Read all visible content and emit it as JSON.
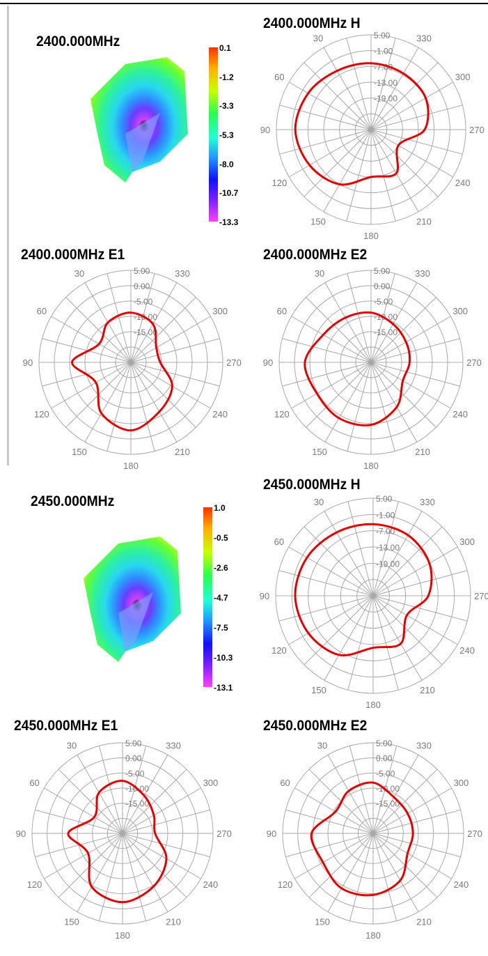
{
  "panels": [
    {
      "id": "p0",
      "title": "2400.000MHz",
      "kind": "3d",
      "colorbar": {
        "labels": [
          "0.1",
          "-1.2",
          "-3.3",
          "-5.3",
          "-8.0",
          "-10.7",
          "-13.3"
        ]
      }
    },
    {
      "id": "p1",
      "title": "2400.000MHz  H",
      "kind": "polar",
      "ring_labels": [
        "5.00",
        "-1.00",
        "-7.00",
        "-13.00",
        "-19.00"
      ],
      "angle_labels": [
        "330",
        "300",
        "270",
        "240",
        "210",
        "180",
        "150",
        "120",
        "90",
        "60",
        "30"
      ],
      "chart_data": {
        "type": "line",
        "coordinate": "polar",
        "unit": "dB",
        "angle_unit": "deg",
        "rlim": [
          -25,
          5
        ],
        "angles": [
          0,
          30,
          60,
          90,
          120,
          150,
          180,
          210,
          240,
          270,
          300,
          330
        ],
        "values": [
          -4,
          -3.5,
          -2,
          -1,
          -2.5,
          -5,
          -10,
          -9,
          -15,
          -8,
          -5,
          -4.5
        ]
      }
    },
    {
      "id": "p2",
      "title": "2400.000MHz  E1",
      "kind": "polar",
      "ring_labels": [
        "5.00",
        "0.00",
        "-5.00",
        "-10.00",
        "-15.00"
      ],
      "angle_labels": [
        "330",
        "300",
        "270",
        "240",
        "210",
        "180",
        "150",
        "120",
        "90",
        "60",
        "30"
      ],
      "chart_data": {
        "type": "line",
        "coordinate": "polar",
        "unit": "dB",
        "angle_unit": "deg",
        "rlim": [
          -20,
          5
        ],
        "angles": [
          0,
          30,
          60,
          90,
          120,
          150,
          180,
          210,
          240,
          270,
          300,
          330
        ],
        "values": [
          -6.5,
          -7.5,
          -10,
          -4,
          -9,
          -4,
          -1.5,
          -4.5,
          -7,
          -12,
          -12,
          -8
        ]
      }
    },
    {
      "id": "p3",
      "title": "2400.000MHz  E2",
      "kind": "polar",
      "ring_labels": [
        "5.00",
        "0.00",
        "-5.00",
        "-10.00",
        "-15.00"
      ],
      "angle_labels": [
        "330",
        "300",
        "270",
        "240",
        "210",
        "180",
        "150",
        "120",
        "90",
        "60",
        "30"
      ],
      "chart_data": {
        "type": "line",
        "coordinate": "polar",
        "unit": "dB",
        "angle_unit": "deg",
        "rlim": [
          -20,
          5
        ],
        "angles": [
          0,
          30,
          60,
          90,
          120,
          150,
          180,
          210,
          240,
          270,
          300,
          330
        ],
        "values": [
          -6.5,
          -6,
          -5,
          -2,
          -3,
          -2.5,
          -3,
          -6,
          -10,
          -9.5,
          -9,
          -8
        ]
      }
    },
    {
      "id": "p4",
      "title": "2450.000MHz",
      "kind": "3d",
      "colorbar": {
        "labels": [
          "1.0",
          "-0.5",
          "-2.6",
          "-4.7",
          "-7.5",
          "-10.3",
          "-13.1"
        ]
      }
    },
    {
      "id": "p5",
      "title": "2450.000MHz  H",
      "kind": "polar",
      "ring_labels": [
        "5.00",
        "-1.00",
        "-7.00",
        "-13.00",
        "-19.00"
      ],
      "angle_labels": [
        "330",
        "300",
        "270",
        "240",
        "210",
        "180",
        "150",
        "120",
        "90",
        "60",
        "30"
      ],
      "chart_data": {
        "type": "line",
        "coordinate": "polar",
        "unit": "dB",
        "angle_unit": "deg",
        "rlim": [
          -25,
          5
        ],
        "angles": [
          0,
          30,
          60,
          90,
          120,
          150,
          180,
          210,
          240,
          270,
          300,
          330
        ],
        "values": [
          -3,
          -2.5,
          -1.5,
          -1,
          -2,
          -4,
          -9,
          -8,
          -13,
          -8,
          -5,
          -3.5
        ]
      }
    },
    {
      "id": "p6",
      "title": "2450.000MHz  E1",
      "kind": "polar",
      "ring_labels": [
        "5.00",
        "0.00",
        "-5.00",
        "-10.00",
        "-15.00"
      ],
      "angle_labels": [
        "330",
        "300",
        "270",
        "240",
        "210",
        "180",
        "150",
        "120",
        "90",
        "60",
        "30"
      ],
      "chart_data": {
        "type": "line",
        "coordinate": "polar",
        "unit": "dB",
        "angle_unit": "deg",
        "rlim": [
          -20,
          5
        ],
        "angles": [
          0,
          30,
          60,
          90,
          120,
          150,
          180,
          210,
          240,
          270,
          300,
          330
        ],
        "values": [
          -5.5,
          -7,
          -11,
          -5,
          -9,
          -3,
          -1,
          -3,
          -6,
          -11,
          -10,
          -8
        ]
      }
    },
    {
      "id": "p7",
      "title": "2450.000MHz  E2",
      "kind": "polar",
      "ring_labels": [
        "5.00",
        "0.00",
        "-5.00",
        "-10.00",
        "-15.00"
      ],
      "angle_labels": [
        "330",
        "300",
        "270",
        "240",
        "210",
        "180",
        "150",
        "120",
        "90",
        "60",
        "30"
      ],
      "chart_data": {
        "type": "line",
        "coordinate": "polar",
        "unit": "dB",
        "angle_unit": "deg",
        "rlim": [
          -20,
          5
        ],
        "angles": [
          0,
          30,
          60,
          90,
          120,
          150,
          180,
          210,
          240,
          270,
          300,
          330
        ],
        "values": [
          -6,
          -6.5,
          -8,
          -3,
          -4,
          -2.5,
          -3,
          -5,
          -9,
          -9,
          -9,
          -8.5
        ]
      }
    }
  ],
  "colors": {
    "trace": "#e00000",
    "grid": "#a8a8a8",
    "label": "#7a7a7a"
  }
}
